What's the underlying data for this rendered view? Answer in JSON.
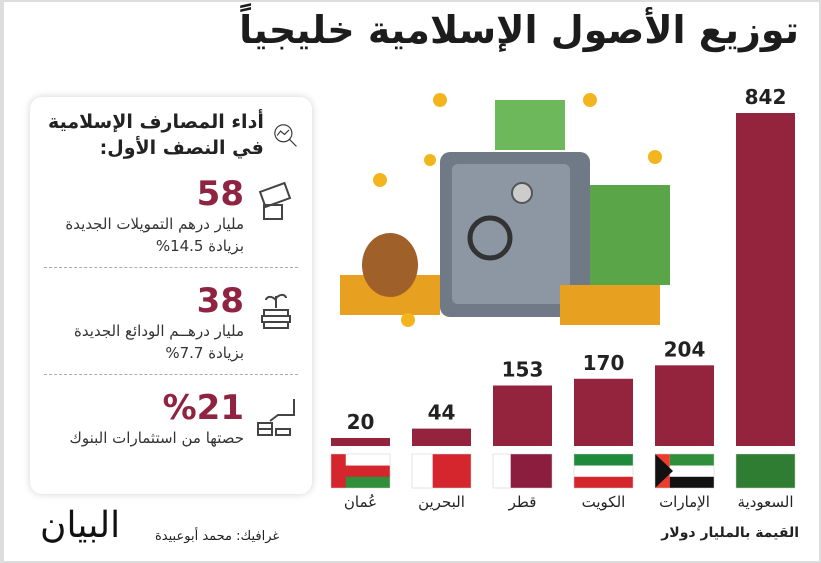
{
  "title": "توزيع الأصول الإسلامية خليجياً",
  "card": {
    "heading": "أداء المصارف الإسلامية في النصف الأول:",
    "stats": [
      {
        "value": "58",
        "desc": "مليار درهم التمويلات الجديدة",
        "sub": "بزيادة 14.5%",
        "icon": "money-hand-icon"
      },
      {
        "value": "38",
        "desc": "مليار درهــم الودائع الجديدة",
        "sub": "بزيادة 7.7%",
        "icon": "plant-coins-icon"
      },
      {
        "value": "%21",
        "desc": "حصتها من استثمارات البنوك",
        "sub": "",
        "icon": "hand-coins-icon"
      }
    ]
  },
  "chart_data": {
    "type": "bar",
    "title": "توزيع الأصول الإسلامية خليجياً",
    "ylabel": "القيمة بالمليار دولار",
    "categories": [
      "السعودية",
      "الإمارات",
      "الكويت",
      "قطر",
      "البحرين",
      "عُمان"
    ],
    "values": [
      842,
      204,
      170,
      153,
      44,
      20
    ],
    "ylim": [
      0,
      842
    ],
    "bar_color": "#94243e"
  },
  "footer": {
    "credit": "غرافيك: محمد أبوعبيدة",
    "logo": "البيان"
  }
}
